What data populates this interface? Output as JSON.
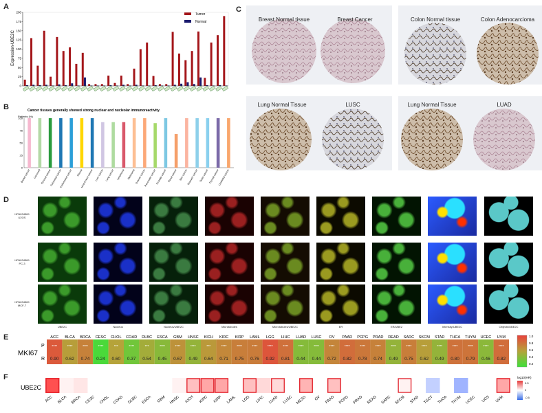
{
  "panels": {
    "a": "A",
    "b": "B",
    "c": "C",
    "d": "D",
    "e": "E",
    "f": "F"
  },
  "chart_a": {
    "type": "bar",
    "ylabel": "Expression-UBE2C",
    "yticks": [
      "0",
      "25",
      "50",
      "75",
      "100",
      "125",
      "150",
      "175",
      "200"
    ],
    "legend": [
      "Tumor",
      "Normal"
    ],
    "series": [
      {
        "name": "Tumor",
        "color": "#a4161a",
        "values": [
          17,
          130,
          55,
          150,
          25,
          133,
          95,
          105,
          60,
          90,
          5,
          5,
          5,
          28,
          8,
          28,
          5,
          47,
          100,
          118,
          27,
          5,
          5,
          147,
          88,
          70,
          95,
          148,
          22,
          118,
          138,
          190
        ]
      },
      {
        "name": "Normal",
        "color": "#1a1a6e",
        "values": [
          2,
          3,
          2,
          3,
          1,
          4,
          2,
          7,
          1,
          23,
          1,
          1,
          1,
          2,
          1,
          3,
          1,
          3,
          1,
          1,
          2,
          1,
          1,
          3,
          6,
          10,
          5,
          23,
          2,
          1,
          2,
          1
        ]
      }
    ]
  },
  "chart_b": {
    "type": "bar",
    "title": "Cancer tissues generally showed strong nuclear and nucleolar immunoreactivity.",
    "ylabel": "Patients (%)",
    "yticks": [
      "0",
      "25",
      "50",
      "75",
      "100"
    ],
    "categories": [
      "Breast cancer",
      "Carcinoid",
      "Cervical cancer",
      "Colorectal cancer",
      "Endometrial cancer",
      "Glioma",
      "Head and neck cancer",
      "Liver cancer",
      "Lung cancer",
      "Lymphoma",
      "Melanoma",
      "Ovarian cancer",
      "Pancreatic cancer",
      "Prostate cancer",
      "Renal cancer",
      "Skin cancer",
      "Stomach cancer",
      "Testis cancer",
      "Thyroid cancer",
      "Urothelial cancer"
    ],
    "values": [
      100,
      100,
      100,
      100,
      100,
      100,
      100,
      92,
      92,
      92,
      100,
      100,
      90,
      100,
      68,
      100,
      100,
      100,
      100,
      100
    ],
    "colors": [
      "#f6b8cf",
      "#b3d8a6",
      "#2a9b3e",
      "#1f78b4",
      "#2b9fd8",
      "#ffd700",
      "#1f78b4",
      "#d0c6e3",
      "#aedba0",
      "#d9596b",
      "#fdbf93",
      "#fca878",
      "#a6d96a",
      "#7ec8e3",
      "#f59f6a",
      "#fbb4a0",
      "#8ed0ea",
      "#8ad0ee",
      "#7b6aa8",
      "#f9a66c"
    ]
  },
  "panel_c": {
    "labels": [
      "Breast Normal tissue",
      "Breast Cancer",
      "Colon Normal tissue",
      "Colon Adenocarcioma",
      "Lung Normal Tissue",
      "LUSC",
      "Lung Normal Tissue",
      "LUAD"
    ]
  },
  "panel_d": {
    "rows": [
      [
        "HPA034569",
        "U2OS"
      ],
      [
        "HPA034569",
        "PC-3"
      ],
      [
        "HPA034569",
        "MCF-7"
      ]
    ],
    "cols": [
      "UBE2C",
      "Nucleus",
      "Nucleus/UBE2C",
      "Microtubules",
      "Microtubules/UBE2C",
      "ER",
      "ER/UBE2",
      "Intensity/UBE2C",
      "Objects/UBE2C"
    ]
  },
  "panel_e": {
    "gene": "MKI67",
    "row_p": "P",
    "row_r": "R",
    "cancers": [
      "ACC",
      "BLCA",
      "BRCA",
      "CESC",
      "CHOL",
      "COAD",
      "DLBC",
      "ESCA",
      "GBM",
      "HNSC",
      "KICH",
      "KIRC",
      "KIRP",
      "LAML",
      "LGG",
      "LIHC",
      "LUAD",
      "LUSC",
      "OV",
      "PAAD",
      "PCPG",
      "PRAD",
      "READ",
      "SARC",
      "SKCM",
      "STAD",
      "THCA",
      "THYM",
      "UCEC",
      "UVM"
    ],
    "p_labels": [
      "****",
      "****",
      "****",
      "****",
      "***",
      "****",
      "***",
      "****",
      "****",
      "****",
      "***",
      "****",
      "****",
      "****",
      "****",
      "****",
      "****",
      "****",
      "****",
      "****",
      "****",
      "****",
      "****",
      "****",
      "****",
      "****",
      "****",
      "****",
      "****",
      "****"
    ],
    "r_values": [
      "0.90",
      "0.62",
      "0.74",
      "0.24",
      "0.60",
      "0.37",
      "0.54",
      "0.45",
      "0.67",
      "0.49",
      "0.64",
      "0.71",
      "0.75",
      "0.76",
      "0.92",
      "0.81",
      "0.44",
      "0.44",
      "0.72",
      "0.82",
      "0.78",
      "0.74",
      "0.49",
      "0.75",
      "0.62",
      "0.49",
      "0.80",
      "0.79",
      "0.46",
      "0.82"
    ],
    "colorbar": [
      "1.0",
      "0.8",
      "0.6",
      "0.4",
      "0.2"
    ]
  },
  "panel_f": {
    "gene": "UBE2C",
    "cancers": [
      "ACC",
      "BLCA",
      "BRCA",
      "CESC",
      "CHOL",
      "COAD",
      "DLBC",
      "ESCA",
      "GBM",
      "HNSC",
      "KICH",
      "KIRC",
      "KIRP",
      "LAML",
      "LGG",
      "LIHC",
      "LUAD",
      "LUSC",
      "MESO",
      "OV",
      "PAAD",
      "PCPG",
      "PRAD",
      "READ",
      "SARC",
      "SKCM",
      "STAD",
      "TGCT",
      "THCA",
      "THYM",
      "UCEC",
      "UCS",
      "UVM"
    ],
    "values": [
      0.7,
      0.05,
      0.1,
      0,
      0,
      0,
      0,
      0,
      0,
      0.05,
      0.25,
      0.35,
      0.35,
      0,
      0.25,
      0.15,
      0.15,
      0,
      0.3,
      0,
      0.25,
      0,
      0,
      0,
      0,
      0.05,
      0,
      -0.25,
      0,
      -0.4,
      0,
      0,
      0.35
    ],
    "outlined": [
      0,
      10,
      11,
      12,
      14,
      16,
      18,
      20,
      25,
      32
    ],
    "legend_title": "log10(HR)",
    "legend_ticks": [
      "0.5",
      "0",
      "-0.5"
    ]
  }
}
